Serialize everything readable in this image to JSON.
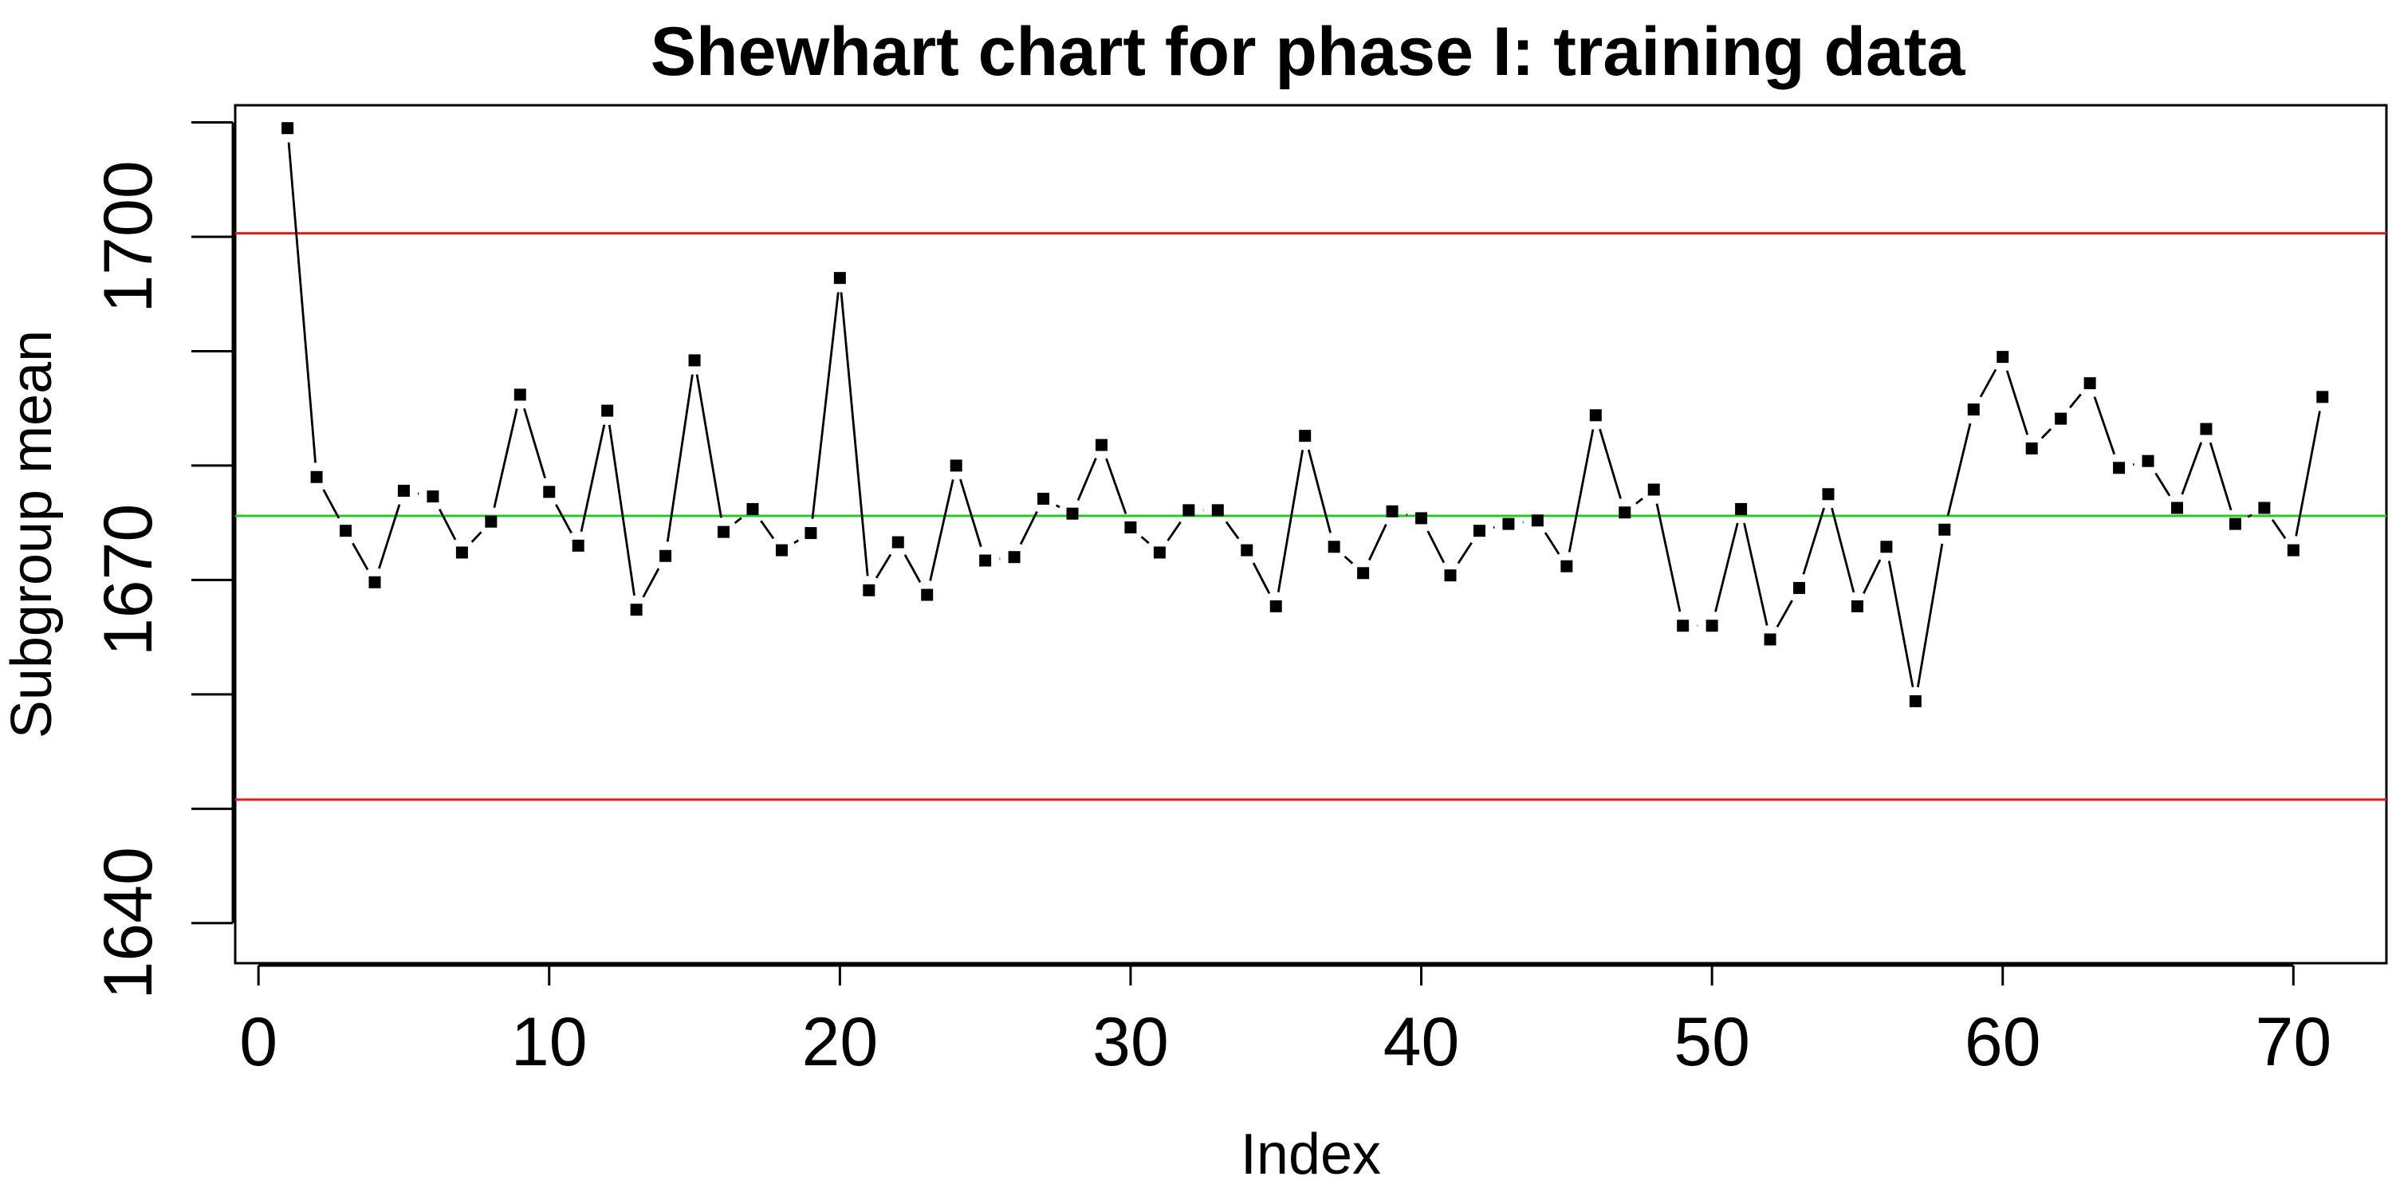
{
  "chart_data": {
    "type": "line",
    "title": "Shewhart chart for phase I: training data",
    "xlabel": "Index",
    "ylabel": "Subgroup mean",
    "xlim": [
      -0.8,
      73.2
    ],
    "ylim": [
      1636.5,
      1711.5
    ],
    "x_ticks": [
      0,
      10,
      20,
      30,
      40,
      50,
      60,
      70
    ],
    "x_tick_labels": [
      "0",
      "10",
      "20",
      "30",
      "40",
      "50",
      "60",
      "70"
    ],
    "y_ticks": [
      1640,
      1650,
      1660,
      1670,
      1680,
      1690,
      1700,
      1710
    ],
    "y_tick_labels": [
      "1640",
      "",
      "",
      "1670",
      "",
      "",
      "1700",
      ""
    ],
    "limits": {
      "upper": 1700.3,
      "center": 1675.6,
      "lower": 1650.8,
      "upper_color": "#e31a1c",
      "center_color": "#22cc22",
      "lower_color": "#e31a1c"
    },
    "grid": false,
    "series": [
      {
        "x": [
          1,
          2,
          3,
          4,
          5,
          6,
          7,
          8,
          9,
          10,
          11,
          12,
          13,
          14,
          15,
          16,
          17,
          18,
          19,
          20,
          21,
          22,
          23,
          24,
          25,
          26,
          27,
          28,
          29,
          30,
          31,
          32,
          33,
          34,
          35,
          36,
          37,
          38,
          39,
          40,
          41,
          42,
          43,
          44,
          45,
          46,
          47,
          48,
          49,
          50,
          51,
          52,
          53,
          54,
          55,
          56,
          57,
          58,
          59,
          60,
          61,
          62,
          63,
          64,
          65,
          66,
          67,
          68,
          69,
          70,
          71
        ],
        "values": [
          1709.5,
          1679.0,
          1674.3,
          1669.8,
          1677.8,
          1677.3,
          1672.4,
          1675.1,
          1686.2,
          1677.7,
          1673.0,
          1684.8,
          1667.4,
          1672.1,
          1689.2,
          1674.2,
          1676.2,
          1672.6,
          1674.1,
          1696.4,
          1669.1,
          1673.3,
          1668.7,
          1680.0,
          1671.7,
          1672.0,
          1677.1,
          1675.8,
          1681.8,
          1674.6,
          1672.4,
          1676.1,
          1676.1,
          1672.6,
          1667.7,
          1682.6,
          1672.9,
          1670.6,
          1676.0,
          1675.4,
          1670.4,
          1674.3,
          1674.9,
          1675.2,
          1671.2,
          1684.4,
          1675.9,
          1677.9,
          1666.0,
          1666.0,
          1676.2,
          1664.8,
          1669.3,
          1677.5,
          1667.7,
          1672.9,
          1659.4,
          1674.4,
          1684.9,
          1689.5,
          1681.5,
          1684.1,
          1687.2,
          1679.8,
          1680.4,
          1676.3,
          1683.2,
          1674.9,
          1676.3,
          1672.6,
          1686.0
        ]
      }
    ],
    "marker": "square",
    "marker_color": "#000000",
    "line_color": "#000000"
  }
}
